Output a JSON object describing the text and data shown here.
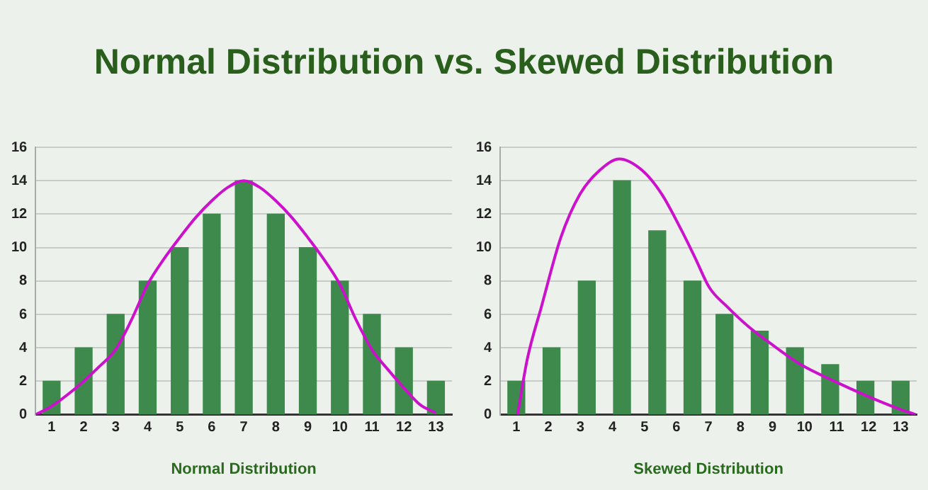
{
  "chart_data": [
    {
      "type": "bar",
      "title": "Normal Distribution vs. Skewed Distribution",
      "xlabel": "Normal Distribution",
      "x": [
        1,
        2,
        3,
        4,
        5,
        6,
        7,
        8,
        9,
        10,
        11,
        12,
        13
      ],
      "xlim": [
        0.5,
        13.5
      ],
      "xticks": [
        1,
        2,
        3,
        4,
        5,
        6,
        7,
        8,
        9,
        10,
        11,
        12,
        13
      ],
      "ylim": [
        0,
        16
      ],
      "yticks": [
        0,
        2,
        4,
        6,
        8,
        10,
        12,
        14,
        16
      ],
      "grid": "y",
      "series": [
        {
          "color": "#3d8a4c",
          "values": [
            2,
            4,
            6,
            8,
            10,
            12,
            14,
            12,
            10,
            8,
            6,
            4,
            2
          ]
        },
        {
          "type": "line",
          "color": "#cc11cc",
          "x": [
            0.5,
            1,
            1.5,
            2,
            2.5,
            3,
            3.5,
            4,
            4.5,
            5,
            5.5,
            6,
            6.5,
            7,
            7.5,
            8,
            8.5,
            9,
            9.5,
            10,
            10.5,
            11,
            11.5,
            12,
            12.5,
            13
          ],
          "values": [
            0,
            0.5,
            1.2,
            2,
            2.9,
            3.9,
            5.7,
            7.8,
            9.3,
            10.6,
            11.8,
            12.8,
            13.6,
            14,
            13.6,
            12.8,
            11.8,
            10.6,
            9.3,
            7.8,
            5.7,
            3.9,
            2.7,
            1.6,
            0.6,
            0.1
          ]
        }
      ]
    },
    {
      "type": "bar",
      "xlabel": "Skewed Distribution",
      "x": [
        1,
        2.1,
        3.2,
        4.3,
        5.4,
        6.5,
        7.5,
        8.6,
        9.7,
        10.8,
        11.9,
        13
      ],
      "xlim": [
        0.5,
        13.5
      ],
      "xticks": [
        1,
        2,
        3,
        4,
        5,
        6,
        7,
        8,
        9,
        10,
        11,
        12,
        13
      ],
      "ylim": [
        0,
        16
      ],
      "yticks": [
        0,
        2,
        4,
        6,
        8,
        10,
        12,
        14,
        16
      ],
      "grid": "y",
      "series": [
        {
          "color": "#3d8a4c",
          "values": [
            2,
            4,
            8,
            14,
            11,
            8,
            6,
            5,
            4,
            3,
            2,
            2
          ]
        },
        {
          "type": "line",
          "color": "#cc11cc",
          "x": [
            1.04,
            1.34,
            1.79,
            2.39,
            2.99,
            3.59,
            4.22,
            4.94,
            5.54,
            6.14,
            6.58,
            7.03,
            7.56,
            8.23,
            8.98,
            9.88,
            10.93,
            11.97,
            12.87,
            13.47
          ],
          "values": [
            0,
            3.3,
            6.5,
            10.6,
            13.2,
            14.6,
            15.3,
            14.6,
            13.2,
            11.1,
            9.4,
            7.6,
            6.5,
            5.3,
            4.2,
            3,
            2,
            1.1,
            0.4,
            0
          ]
        }
      ]
    }
  ]
}
